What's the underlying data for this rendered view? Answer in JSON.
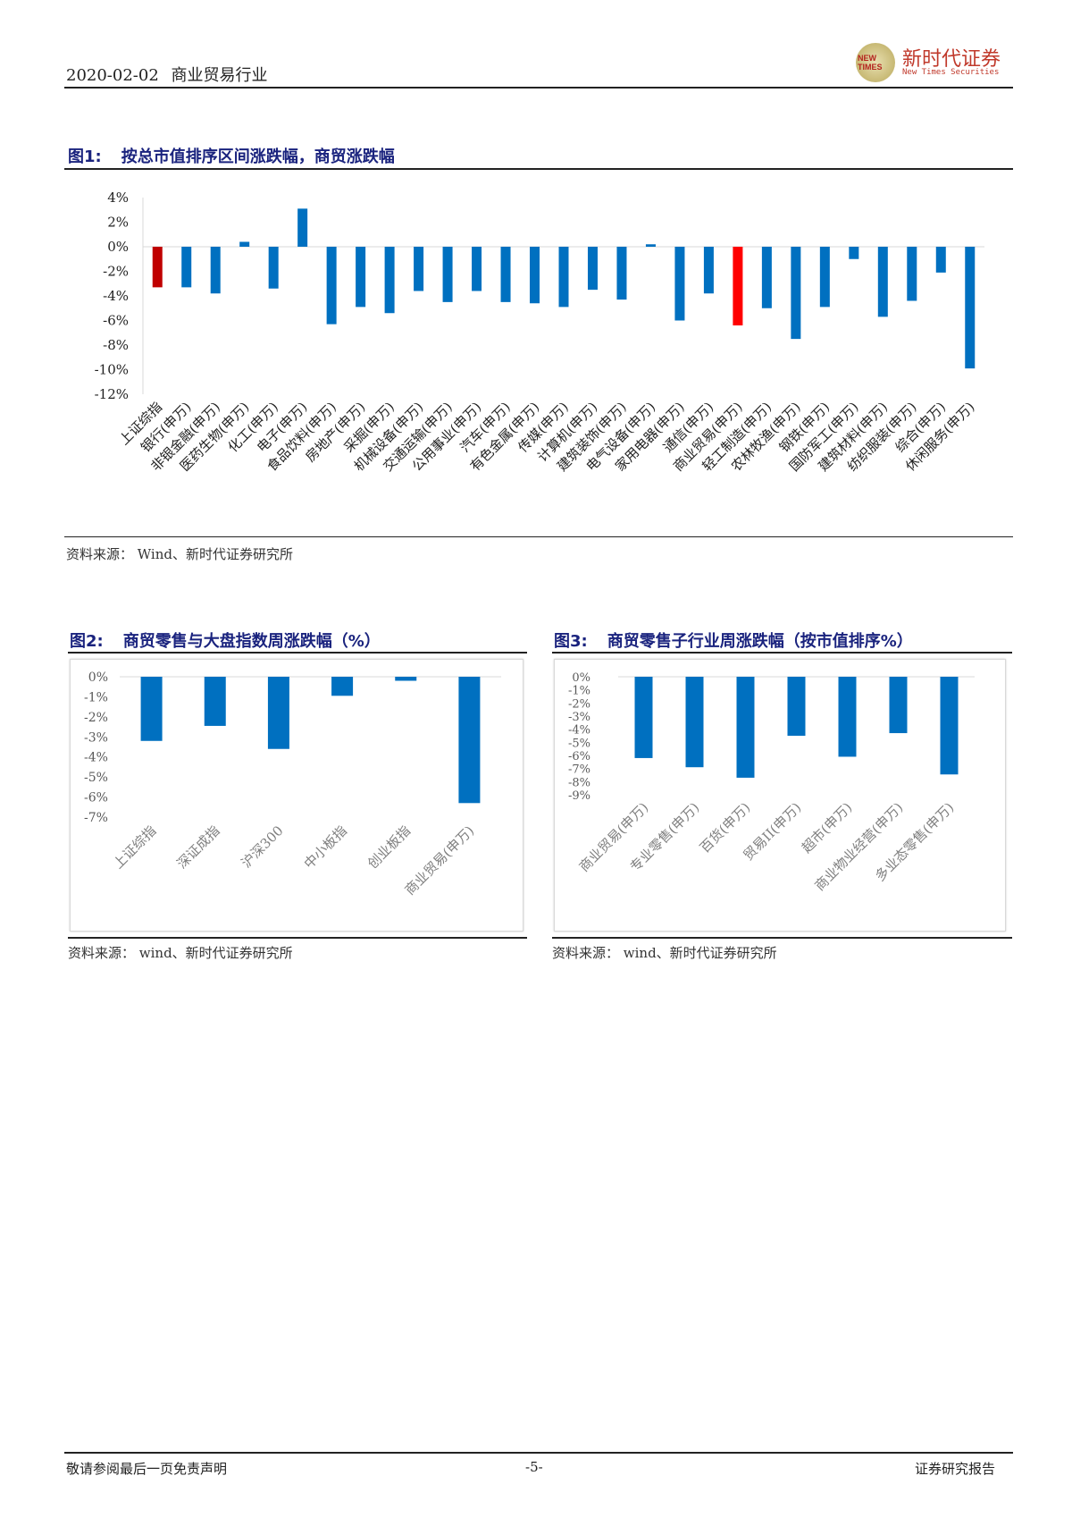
{
  "header": {
    "date": "2020-02-02",
    "industry": "商业贸易行业",
    "logo_cn": "新时代证券",
    "logo_en": "New Times Securities",
    "logo_mark": "NEW TIMES"
  },
  "figures": [
    {
      "number": "图1:",
      "title": "按总市值排序区间涨跌幅，商贸涨跌幅",
      "source": "资料来源： Wind、新时代证券研究所"
    },
    {
      "number": "图2:",
      "title": "商贸零售与大盘指数周涨跌幅（%）",
      "source": "资料来源： wind、新时代证券研究所"
    },
    {
      "number": "图3:",
      "title": "商贸零售子行业周涨跌幅（按市值排序%）",
      "source": "资料来源： wind、新时代证券研究所"
    }
  ],
  "chart_data": [
    {
      "type": "bar",
      "categories": [
        "上证综指",
        "银行(申万)",
        "非银金融(申万)",
        "医药生物(申万)",
        "化工(申万)",
        "电子(申万)",
        "食品饮料(申万)",
        "房地产(申万)",
        "采掘(申万)",
        "机械设备(申万)",
        "交通运输(申万)",
        "公用事业(申万)",
        "汽车(申万)",
        "有色金属(申万)",
        "传媒(申万)",
        "计算机(申万)",
        "建筑装饰(申万)",
        "电气设备(申万)",
        "家用电器(申万)",
        "通信(申万)",
        "商业贸易(申万)",
        "轻工制造(申万)",
        "农林牧渔(申万)",
        "钢铁(申万)",
        "国防军工(申万)",
        "建筑材料(申万)",
        "纺织服装(申万)",
        "综合(申万)",
        "休闲服务(申万)"
      ],
      "values": [
        -3.3,
        -3.3,
        -3.8,
        0.4,
        -3.4,
        3.1,
        -6.3,
        -4.9,
        -5.4,
        -3.6,
        -4.5,
        -3.6,
        -4.5,
        -4.6,
        -4.9,
        -3.5,
        -4.3,
        0.2,
        -6.0,
        -3.8,
        -6.4,
        -5.0,
        -7.5,
        -4.9,
        -1.0,
        -5.7,
        -4.4,
        -2.1,
        -9.9
      ],
      "yticks": [
        "4%",
        "2%",
        "0%",
        "-2%",
        "-4%",
        "-6%",
        "-8%",
        "-10%",
        "-12%"
      ],
      "ylim": [
        -12,
        4
      ],
      "colors": {
        "default": "#0070c0",
        "上证综指": "#c00000",
        "商业贸易(申万)": "#ff0000"
      }
    },
    {
      "type": "bar",
      "categories": [
        "上证综指",
        "深证成指",
        "沪深300",
        "中小板指",
        "创业板指",
        "商业贸易(申万)"
      ],
      "values": [
        -3.2,
        -2.45,
        -3.6,
        -0.95,
        -0.2,
        -6.3
      ],
      "yticks": [
        "0%",
        "-1%",
        "-2%",
        "-3%",
        "-4%",
        "-5%",
        "-6%",
        "-7%"
      ],
      "ylim": [
        -7,
        0
      ],
      "colors": {
        "default": "#0070c0"
      }
    },
    {
      "type": "bar",
      "categories": [
        "商业贸易(申万)",
        "专业零售(申万)",
        "百货(申万)",
        "贸易II(申万)",
        "超市(申万)",
        "商业物业经营(申万)",
        "多业态零售(申万)"
      ],
      "values": [
        -6.2,
        -6.9,
        -7.7,
        -4.5,
        -6.1,
        -4.3,
        -7.45
      ],
      "yticks": [
        "0%",
        "-1%",
        "-2%",
        "-3%",
        "-4%",
        "-5%",
        "-6%",
        "-7%",
        "-8%",
        "-9%"
      ],
      "ylim": [
        -9,
        0
      ],
      "colors": {
        "default": "#0070c0"
      }
    }
  ],
  "footer": {
    "disclaimer": "敬请参阅最后一页免责声明",
    "page": "-5-",
    "report_type": "证券研究报告"
  }
}
